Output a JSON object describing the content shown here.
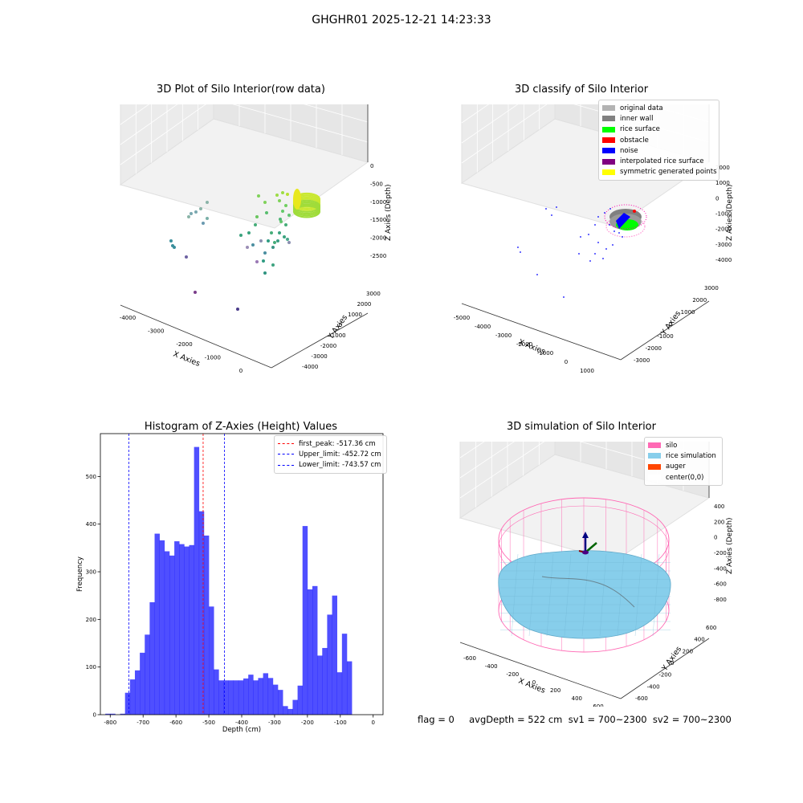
{
  "figure": {
    "suptitle": "GHGHR01 2025-12-21 14:23:33",
    "footer": "flag = 0     avgDepth = 522 cm  sv1 = 700~2300  sv2 = 700~2300"
  },
  "panels": {
    "raw": {
      "title": "3D Plot of Silo Interior(row data)",
      "xlabel": "X Axies",
      "ylabel": "Y Axies",
      "zlabel": "Z Axies (Depth)",
      "xticks": [
        "-4000",
        "-3000",
        "-2000",
        "-1000",
        "0"
      ],
      "yticks": [
        "-4000",
        "-3000",
        "-2000",
        "-1000",
        "0",
        "1000",
        "2000",
        "3000"
      ],
      "zticks": [
        "0",
        "-500",
        "-1000",
        "-1500",
        "-2000",
        "-2500"
      ]
    },
    "classify": {
      "title": "3D classify of Silo Interior",
      "xlabel": "X Axies",
      "ylabel": "Y Axies",
      "zlabel": "Z Axies (Depth)",
      "xticks": [
        "-5000",
        "-4000",
        "-3000",
        "-2000",
        "-1000",
        "0",
        "1000"
      ],
      "yticks": [
        "-3000",
        "-2000",
        "-1000",
        "0",
        "1000",
        "2000",
        "3000"
      ],
      "zticks": [
        "2000",
        "1000",
        "0",
        "-1000",
        "-2000",
        "-3000",
        "-4000"
      ],
      "legend": [
        {
          "label": "original data",
          "color": "#b3b3b3"
        },
        {
          "label": "inner wall",
          "color": "#808080"
        },
        {
          "label": "rice surface",
          "color": "#00ff00"
        },
        {
          "label": "obstacle",
          "color": "#ff0000"
        },
        {
          "label": "noise",
          "color": "#0000ff"
        },
        {
          "label": "interpolated rice surface",
          "color": "#800080"
        },
        {
          "label": "symmetric generated points",
          "color": "#ffff00"
        }
      ]
    },
    "simulation": {
      "title": "3D simulation of Silo Interior",
      "xlabel": "X Axies",
      "ylabel": "Y Axies",
      "zlabel": "Z Axies (Depth)",
      "xticks": [
        "-600",
        "-400",
        "-200",
        "0",
        "200",
        "400",
        "600"
      ],
      "yticks": [
        "-600",
        "-400",
        "-200",
        "0",
        "200",
        "400",
        "600"
      ],
      "zticks": [
        "400",
        "200",
        "0",
        "-200",
        "-400",
        "-600",
        "-800"
      ],
      "legend": [
        {
          "label": "silo",
          "color": "#ff69b4"
        },
        {
          "label": "rice simulation",
          "color": "#87ceeb"
        },
        {
          "label": "auger",
          "color": "#ff4500"
        },
        {
          "label": "center(0,0)",
          "color": "#ffffff"
        }
      ]
    }
  },
  "chart_data": [
    {
      "type": "bar",
      "title": "Histogram of Z-Axies (Height) Values",
      "xlabel": "Depth (cm)",
      "ylabel": "Frequency",
      "xlim": [
        -830,
        30
      ],
      "ylim": [
        0,
        590
      ],
      "xticks": [
        -800,
        -700,
        -600,
        -500,
        -400,
        -300,
        -200,
        -100,
        0
      ],
      "yticks": [
        0,
        100,
        200,
        300,
        400,
        500
      ],
      "bin_width": 15,
      "bins": [
        {
          "start": -815,
          "count": 2
        },
        {
          "start": -800,
          "count": 2
        },
        {
          "start": -785,
          "count": 0
        },
        {
          "start": -770,
          "count": 2
        },
        {
          "start": -755,
          "count": 46
        },
        {
          "start": -740,
          "count": 74
        },
        {
          "start": -725,
          "count": 93
        },
        {
          "start": -710,
          "count": 130
        },
        {
          "start": -695,
          "count": 168
        },
        {
          "start": -680,
          "count": 236
        },
        {
          "start": -665,
          "count": 380
        },
        {
          "start": -650,
          "count": 366
        },
        {
          "start": -635,
          "count": 343
        },
        {
          "start": -620,
          "count": 334
        },
        {
          "start": -605,
          "count": 364
        },
        {
          "start": -590,
          "count": 358
        },
        {
          "start": -575,
          "count": 353
        },
        {
          "start": -560,
          "count": 356
        },
        {
          "start": -545,
          "count": 562
        },
        {
          "start": -530,
          "count": 427
        },
        {
          "start": -515,
          "count": 376
        },
        {
          "start": -500,
          "count": 227
        },
        {
          "start": -485,
          "count": 95
        },
        {
          "start": -470,
          "count": 72
        },
        {
          "start": -455,
          "count": 72
        },
        {
          "start": -440,
          "count": 72
        },
        {
          "start": -425,
          "count": 72
        },
        {
          "start": -410,
          "count": 72
        },
        {
          "start": -395,
          "count": 76
        },
        {
          "start": -380,
          "count": 84
        },
        {
          "start": -365,
          "count": 72
        },
        {
          "start": -350,
          "count": 77
        },
        {
          "start": -335,
          "count": 87
        },
        {
          "start": -320,
          "count": 77
        },
        {
          "start": -305,
          "count": 63
        },
        {
          "start": -290,
          "count": 52
        },
        {
          "start": -275,
          "count": 18
        },
        {
          "start": -260,
          "count": 12
        },
        {
          "start": -245,
          "count": 31
        },
        {
          "start": -230,
          "count": 61
        },
        {
          "start": -215,
          "count": 396
        },
        {
          "start": -200,
          "count": 263
        },
        {
          "start": -185,
          "count": 270
        },
        {
          "start": -170,
          "count": 124
        },
        {
          "start": -155,
          "count": 140
        },
        {
          "start": -140,
          "count": 210
        },
        {
          "start": -125,
          "count": 250
        },
        {
          "start": -110,
          "count": 89
        },
        {
          "start": -95,
          "count": 170
        },
        {
          "start": -80,
          "count": 112
        }
      ],
      "bar_color": "#0000ff",
      "lines": [
        {
          "label": "first_peak: -517.36 cm",
          "x": -517.36,
          "color": "#ff0000"
        },
        {
          "label": "Upper_limit: -452.72 cm",
          "x": -452.72,
          "color": "#0000ff"
        },
        {
          "label": "Lower_limit: -743.57 cm",
          "x": -743.57,
          "color": "#0000ff"
        }
      ],
      "legend_position": "top-right"
    }
  ]
}
